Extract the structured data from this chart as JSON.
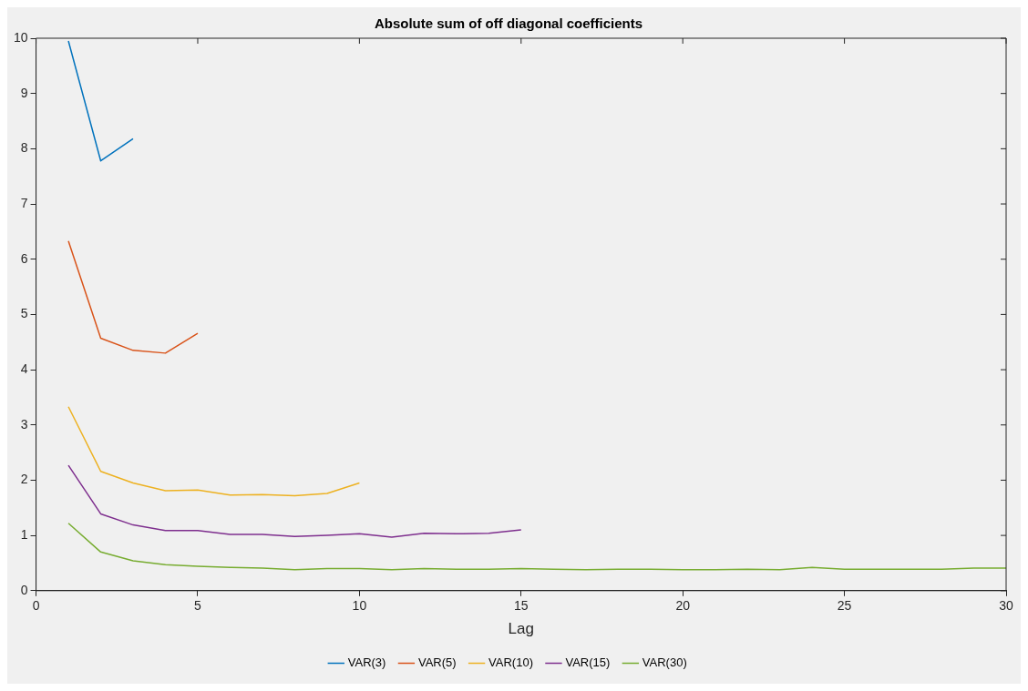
{
  "chart_data": {
    "type": "line",
    "title": "Absolute sum of off diagonal coefficients",
    "xlabel": "Lag",
    "xlim": [
      0,
      30
    ],
    "xticks": [
      0,
      5,
      10,
      15,
      20,
      25,
      30
    ],
    "ylim": [
      0,
      10
    ],
    "yticks": [
      0,
      1,
      2,
      3,
      4,
      5,
      6,
      7,
      8,
      9,
      10
    ],
    "grid": false,
    "legend": "bottom",
    "marker": "none",
    "line_style": "solid",
    "series": [
      {
        "name": "VAR(3)",
        "color": "#0072bd",
        "x": [
          1,
          2,
          3
        ],
        "values": [
          9.95,
          7.78,
          8.18
        ]
      },
      {
        "name": "VAR(5)",
        "color": "#d95319",
        "x": [
          1,
          2,
          3,
          4,
          5
        ],
        "values": [
          6.33,
          4.57,
          4.35,
          4.3,
          4.66
        ]
      },
      {
        "name": "VAR(10)",
        "color": "#edb120",
        "x": [
          1,
          2,
          3,
          4,
          5,
          6,
          7,
          8,
          9,
          10
        ],
        "values": [
          3.33,
          2.16,
          1.95,
          1.81,
          1.82,
          1.73,
          1.74,
          1.72,
          1.76,
          1.95
        ]
      },
      {
        "name": "VAR(15)",
        "color": "#7e2f8e",
        "x": [
          1,
          2,
          3,
          4,
          5,
          6,
          7,
          8,
          9,
          10,
          11,
          12,
          13,
          14,
          15
        ],
        "values": [
          2.27,
          1.39,
          1.19,
          1.09,
          1.09,
          1.02,
          1.02,
          0.98,
          1.0,
          1.03,
          0.97,
          1.04,
          1.03,
          1.04,
          1.1
        ]
      },
      {
        "name": "VAR(30)",
        "color": "#77ac30",
        "x": [
          1,
          2,
          3,
          4,
          5,
          6,
          7,
          8,
          9,
          10,
          11,
          12,
          13,
          14,
          15,
          16,
          17,
          18,
          19,
          20,
          21,
          22,
          23,
          24,
          25,
          26,
          27,
          28,
          29,
          30
        ],
        "values": [
          1.22,
          0.7,
          0.54,
          0.47,
          0.44,
          0.42,
          0.41,
          0.38,
          0.4,
          0.4,
          0.38,
          0.4,
          0.39,
          0.39,
          0.4,
          0.39,
          0.38,
          0.39,
          0.39,
          0.38,
          0.38,
          0.39,
          0.38,
          0.42,
          0.39,
          0.39,
          0.39,
          0.39,
          0.41,
          0.41
        ]
      }
    ]
  }
}
